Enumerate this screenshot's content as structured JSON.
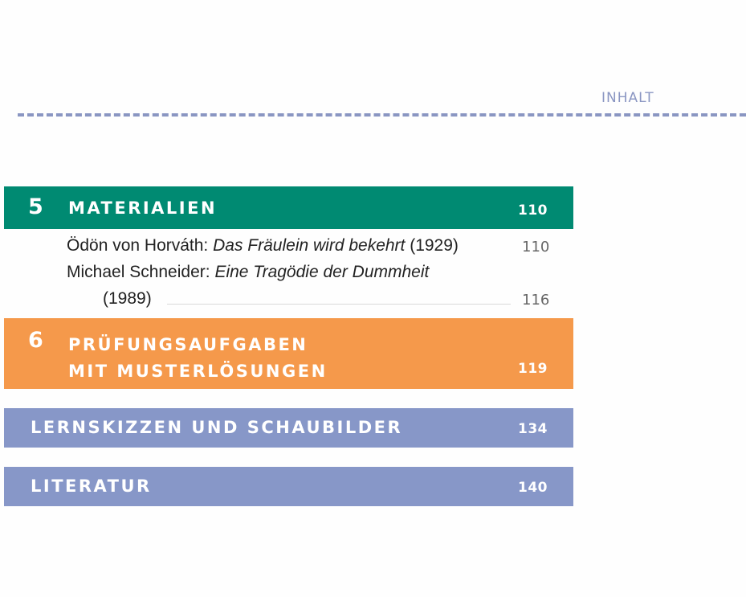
{
  "header": {
    "label": "INHALT"
  },
  "sections": {
    "materialien": {
      "number": "5",
      "title": "MATERIALIEN",
      "page": "110"
    },
    "pruefung": {
      "number": "6",
      "title_line1": "PRÜFUNGSAUFGABEN",
      "title_line2": "MIT MUSTERLÖSUNGEN",
      "page": "119"
    },
    "lernskizzen": {
      "title": "LERNSKIZZEN UND SCHAUBILDER",
      "page": "134"
    },
    "literatur": {
      "title": "LITERATUR",
      "page": "140"
    }
  },
  "entries": [
    {
      "author": "Ödön von Horváth: ",
      "work": "Das Fräulein wird bekehrt",
      "year": " (1929)",
      "page": "110"
    },
    {
      "author": "Michael Schneider: ",
      "work": "Eine Tragödie der Dummheit",
      "year": "(1989)",
      "page": "116"
    }
  ],
  "colors": {
    "teal": "#008a72",
    "orange": "#f5994b",
    "blue": "#8797c8",
    "header": "#8a96c2"
  }
}
